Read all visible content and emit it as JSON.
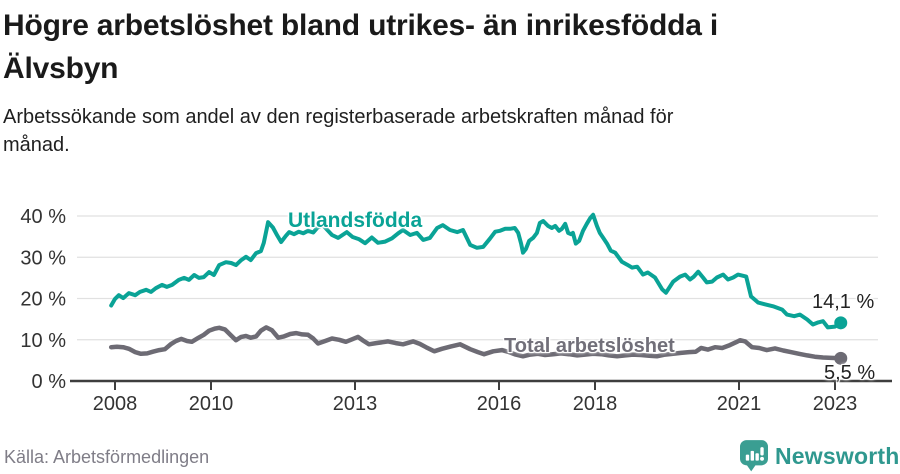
{
  "header": {
    "title_lines": [
      "Högre arbetslöshet bland utrikes- än inrikesfödda i",
      "Älvsbyn"
    ],
    "subtitle_lines": [
      "Arbetssökande som andel av den registerbaserade arbetskraften månad för",
      "månad."
    ]
  },
  "footer": {
    "source": "Källa: Arbetsförmedlingen",
    "brand": "Newsworthy"
  },
  "colors": {
    "accent_teal": "#0aa396",
    "neutral_gray": "#6d6b74",
    "axis": "#3e3e3e",
    "grid": "#e1e1e1",
    "logo_teal": "#2f988f"
  },
  "chart_data": {
    "type": "line",
    "title": "Högre arbetslöshet bland utrikes- än inrikesfödda i Älvsbyn",
    "subtitle": "Arbetssökande som andel av den registerbaserade arbetskraften månad för månad.",
    "xlabel": "",
    "ylabel": "",
    "grid": "horizontal",
    "legend_position": "inline-labels",
    "xlim": [
      2007.8,
      2023.3
    ],
    "ylim": [
      0,
      44
    ],
    "x_tick_years": [
      2008,
      2010,
      2013,
      2016,
      2018,
      2021,
      2023
    ],
    "x_tick_labels": [
      "2008",
      "2010",
      "2013",
      "2016",
      "2018",
      "2021",
      "2023"
    ],
    "y_ticks": [
      0,
      10,
      20,
      30,
      40
    ],
    "y_tick_labels": [
      "0 %",
      "10 %",
      "20 %",
      "30 %",
      "40 %"
    ],
    "series": [
      {
        "name": "Utlandsfödda",
        "color": "#0aa396",
        "width": 4,
        "end_label": "14,1 %",
        "last_value": 14.1,
        "points": [
          [
            2007.92,
            18.3
          ],
          [
            2008.0,
            19.9
          ],
          [
            2008.08,
            20.8
          ],
          [
            2008.17,
            20.1
          ],
          [
            2008.29,
            21.3
          ],
          [
            2008.42,
            20.8
          ],
          [
            2008.52,
            21.6
          ],
          [
            2008.65,
            22.1
          ],
          [
            2008.75,
            21.6
          ],
          [
            2008.85,
            22.5
          ],
          [
            2008.98,
            23.3
          ],
          [
            2009.08,
            22.8
          ],
          [
            2009.19,
            23.3
          ],
          [
            2009.33,
            24.5
          ],
          [
            2009.44,
            25.0
          ],
          [
            2009.54,
            24.5
          ],
          [
            2009.65,
            25.7
          ],
          [
            2009.75,
            25.0
          ],
          [
            2009.85,
            25.2
          ],
          [
            2009.96,
            26.4
          ],
          [
            2010.06,
            25.7
          ],
          [
            2010.17,
            28.1
          ],
          [
            2010.31,
            28.8
          ],
          [
            2010.42,
            28.6
          ],
          [
            2010.52,
            28.1
          ],
          [
            2010.63,
            29.3
          ],
          [
            2010.73,
            30.1
          ],
          [
            2010.83,
            29.3
          ],
          [
            2010.94,
            31.0
          ],
          [
            2011.04,
            31.5
          ],
          [
            2011.1,
            33.5
          ],
          [
            2011.19,
            38.5
          ],
          [
            2011.29,
            37.2
          ],
          [
            2011.38,
            35.3
          ],
          [
            2011.46,
            33.7
          ],
          [
            2011.56,
            35.2
          ],
          [
            2011.63,
            36.1
          ],
          [
            2011.73,
            35.6
          ],
          [
            2011.83,
            36.2
          ],
          [
            2011.92,
            35.8
          ],
          [
            2012.02,
            36.4
          ],
          [
            2012.13,
            36.0
          ],
          [
            2012.23,
            37.3
          ],
          [
            2012.33,
            37.8
          ],
          [
            2012.44,
            36.4
          ],
          [
            2012.52,
            35.4
          ],
          [
            2012.65,
            34.7
          ],
          [
            2012.83,
            36.1
          ],
          [
            2012.95,
            34.9
          ],
          [
            2013.08,
            34.4
          ],
          [
            2013.21,
            33.4
          ],
          [
            2013.35,
            34.8
          ],
          [
            2013.48,
            33.5
          ],
          [
            2013.63,
            33.8
          ],
          [
            2013.77,
            34.6
          ],
          [
            2013.9,
            35.8
          ],
          [
            2014.0,
            36.6
          ],
          [
            2014.15,
            35.4
          ],
          [
            2014.29,
            35.9
          ],
          [
            2014.42,
            34.2
          ],
          [
            2014.56,
            34.7
          ],
          [
            2014.71,
            37.1
          ],
          [
            2014.83,
            37.8
          ],
          [
            2014.98,
            36.6
          ],
          [
            2015.13,
            36.1
          ],
          [
            2015.25,
            36.6
          ],
          [
            2015.4,
            33.0
          ],
          [
            2015.54,
            32.3
          ],
          [
            2015.67,
            32.5
          ],
          [
            2015.81,
            34.5
          ],
          [
            2015.92,
            36.2
          ],
          [
            2016.02,
            36.4
          ],
          [
            2016.13,
            36.9
          ],
          [
            2016.23,
            36.9
          ],
          [
            2016.33,
            37.1
          ],
          [
            2016.4,
            35.9
          ],
          [
            2016.46,
            33.3
          ],
          [
            2016.5,
            31.1
          ],
          [
            2016.56,
            32.0
          ],
          [
            2016.63,
            34.0
          ],
          [
            2016.71,
            34.7
          ],
          [
            2016.79,
            35.9
          ],
          [
            2016.85,
            38.3
          ],
          [
            2016.92,
            38.8
          ],
          [
            2017.02,
            37.6
          ],
          [
            2017.1,
            37.1
          ],
          [
            2017.17,
            37.6
          ],
          [
            2017.25,
            36.4
          ],
          [
            2017.31,
            36.9
          ],
          [
            2017.38,
            38.1
          ],
          [
            2017.44,
            35.9
          ],
          [
            2017.5,
            35.6
          ],
          [
            2017.54,
            35.9
          ],
          [
            2017.6,
            33.3
          ],
          [
            2017.67,
            34.0
          ],
          [
            2017.75,
            36.4
          ],
          [
            2017.83,
            38.1
          ],
          [
            2017.9,
            39.5
          ],
          [
            2017.96,
            40.3
          ],
          [
            2018.04,
            37.6
          ],
          [
            2018.1,
            35.9
          ],
          [
            2018.17,
            34.7
          ],
          [
            2018.25,
            33.3
          ],
          [
            2018.33,
            31.6
          ],
          [
            2018.42,
            31.1
          ],
          [
            2018.56,
            28.9
          ],
          [
            2018.67,
            28.2
          ],
          [
            2018.77,
            27.5
          ],
          [
            2018.88,
            27.7
          ],
          [
            2019.0,
            25.8
          ],
          [
            2019.1,
            26.3
          ],
          [
            2019.25,
            25.1
          ],
          [
            2019.4,
            22.2
          ],
          [
            2019.48,
            21.4
          ],
          [
            2019.63,
            24.1
          ],
          [
            2019.77,
            25.3
          ],
          [
            2019.88,
            25.8
          ],
          [
            2019.98,
            24.6
          ],
          [
            2020.06,
            25.3
          ],
          [
            2020.15,
            26.5
          ],
          [
            2020.25,
            25.1
          ],
          [
            2020.33,
            23.9
          ],
          [
            2020.44,
            24.1
          ],
          [
            2020.54,
            25.1
          ],
          [
            2020.67,
            25.8
          ],
          [
            2020.77,
            24.6
          ],
          [
            2020.88,
            25.1
          ],
          [
            2020.98,
            25.8
          ],
          [
            2021.15,
            25.3
          ],
          [
            2021.25,
            20.5
          ],
          [
            2021.4,
            19.0
          ],
          [
            2021.54,
            18.6
          ],
          [
            2021.71,
            18.1
          ],
          [
            2021.9,
            17.3
          ],
          [
            2022.0,
            16.1
          ],
          [
            2022.15,
            15.7
          ],
          [
            2022.27,
            16.1
          ],
          [
            2022.42,
            14.9
          ],
          [
            2022.54,
            13.7
          ],
          [
            2022.65,
            14.2
          ],
          [
            2022.75,
            14.5
          ],
          [
            2022.85,
            13.0
          ],
          [
            2023.0,
            13.2
          ],
          [
            2023.12,
            14.1
          ]
        ]
      },
      {
        "name": "Total arbetslöshet",
        "color": "#6d6b74",
        "width": 4.5,
        "end_label": "5,5 %",
        "last_value": 5.5,
        "points": [
          [
            2007.92,
            8.2
          ],
          [
            2008.04,
            8.3
          ],
          [
            2008.17,
            8.2
          ],
          [
            2008.29,
            7.8
          ],
          [
            2008.42,
            7.0
          ],
          [
            2008.54,
            6.6
          ],
          [
            2008.67,
            6.7
          ],
          [
            2008.79,
            7.1
          ],
          [
            2008.92,
            7.5
          ],
          [
            2009.04,
            7.7
          ],
          [
            2009.17,
            9.0
          ],
          [
            2009.27,
            9.7
          ],
          [
            2009.38,
            10.2
          ],
          [
            2009.5,
            9.7
          ],
          [
            2009.6,
            9.5
          ],
          [
            2009.73,
            10.4
          ],
          [
            2009.85,
            11.2
          ],
          [
            2009.96,
            12.2
          ],
          [
            2010.08,
            12.7
          ],
          [
            2010.17,
            12.9
          ],
          [
            2010.29,
            12.5
          ],
          [
            2010.42,
            11.0
          ],
          [
            2010.52,
            9.9
          ],
          [
            2010.63,
            10.7
          ],
          [
            2010.73,
            10.9
          ],
          [
            2010.83,
            10.5
          ],
          [
            2010.94,
            10.8
          ],
          [
            2011.04,
            12.2
          ],
          [
            2011.15,
            13.0
          ],
          [
            2011.27,
            12.3
          ],
          [
            2011.4,
            10.5
          ],
          [
            2011.52,
            10.8
          ],
          [
            2011.65,
            11.4
          ],
          [
            2011.77,
            11.6
          ],
          [
            2011.9,
            11.3
          ],
          [
            2012.02,
            11.2
          ],
          [
            2012.13,
            10.3
          ],
          [
            2012.23,
            9.1
          ],
          [
            2012.38,
            9.7
          ],
          [
            2012.52,
            10.3
          ],
          [
            2012.67,
            10.0
          ],
          [
            2012.81,
            9.5
          ],
          [
            2012.94,
            10.1
          ],
          [
            2013.06,
            10.7
          ],
          [
            2013.17,
            9.8
          ],
          [
            2013.29,
            8.9
          ],
          [
            2013.44,
            9.2
          ],
          [
            2013.58,
            9.4
          ],
          [
            2013.69,
            9.6
          ],
          [
            2013.85,
            9.2
          ],
          [
            2014.0,
            8.9
          ],
          [
            2014.21,
            9.6
          ],
          [
            2014.35,
            9.0
          ],
          [
            2014.48,
            8.2
          ],
          [
            2014.65,
            7.2
          ],
          [
            2014.81,
            7.8
          ],
          [
            2015.0,
            8.4
          ],
          [
            2015.19,
            8.9
          ],
          [
            2015.4,
            7.7
          ],
          [
            2015.56,
            7.0
          ],
          [
            2015.69,
            6.5
          ],
          [
            2015.88,
            7.2
          ],
          [
            2016.06,
            7.5
          ],
          [
            2016.21,
            7.0
          ],
          [
            2016.35,
            6.4
          ],
          [
            2016.5,
            6.0
          ],
          [
            2016.65,
            6.4
          ],
          [
            2016.81,
            6.6
          ],
          [
            2016.96,
            6.3
          ],
          [
            2017.13,
            6.5
          ],
          [
            2017.29,
            6.7
          ],
          [
            2017.46,
            6.5
          ],
          [
            2017.63,
            6.2
          ],
          [
            2017.79,
            6.4
          ],
          [
            2017.96,
            6.6
          ],
          [
            2018.13,
            6.5
          ],
          [
            2018.29,
            6.2
          ],
          [
            2018.46,
            6.0
          ],
          [
            2018.63,
            6.2
          ],
          [
            2018.79,
            6.4
          ],
          [
            2018.96,
            6.3
          ],
          [
            2019.13,
            6.1
          ],
          [
            2019.29,
            6.0
          ],
          [
            2019.46,
            6.4
          ],
          [
            2019.63,
            6.6
          ],
          [
            2019.79,
            6.8
          ],
          [
            2019.96,
            7.0
          ],
          [
            2020.1,
            7.1
          ],
          [
            2020.21,
            8.0
          ],
          [
            2020.35,
            7.6
          ],
          [
            2020.5,
            8.2
          ],
          [
            2020.65,
            8.0
          ],
          [
            2020.81,
            8.7
          ],
          [
            2020.94,
            9.4
          ],
          [
            2021.02,
            9.9
          ],
          [
            2021.13,
            9.6
          ],
          [
            2021.27,
            8.2
          ],
          [
            2021.42,
            8.0
          ],
          [
            2021.58,
            7.5
          ],
          [
            2021.75,
            7.9
          ],
          [
            2021.92,
            7.4
          ],
          [
            2022.08,
            7.0
          ],
          [
            2022.25,
            6.6
          ],
          [
            2022.42,
            6.2
          ],
          [
            2022.58,
            5.9
          ],
          [
            2022.75,
            5.7
          ],
          [
            2022.92,
            5.6
          ],
          [
            2023.12,
            5.5
          ]
        ]
      }
    ]
  }
}
